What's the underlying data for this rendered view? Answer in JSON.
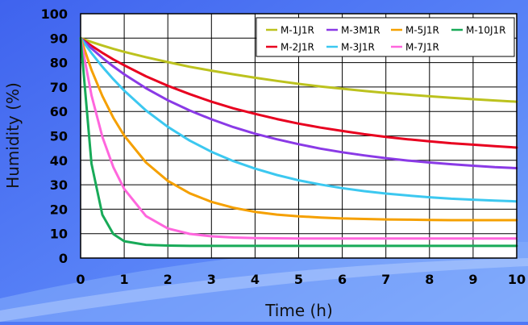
{
  "chart_data": {
    "type": "line",
    "title": "",
    "xlabel": "Time (h)",
    "ylabel": "Humidity (%)",
    "xlim": [
      0,
      10
    ],
    "ylim": [
      0,
      100
    ],
    "x_ticks": [
      "0",
      "1",
      "2",
      "3",
      "4",
      "5",
      "6",
      "7",
      "8",
      "9",
      "10"
    ],
    "y_ticks": [
      "0",
      "10",
      "20",
      "30",
      "40",
      "50",
      "60",
      "70",
      "80",
      "90",
      "100"
    ],
    "grid": true,
    "legend_position": "top-right",
    "x": [
      0,
      0.25,
      0.5,
      0.75,
      1,
      1.5,
      2,
      2.5,
      3,
      3.5,
      4,
      4.5,
      5,
      5.5,
      6,
      6.5,
      7,
      7.5,
      8,
      8.5,
      9,
      9.5,
      10
    ],
    "series": [
      {
        "name": "M-1J1R",
        "color": "#bcc21e",
        "values": [
          90,
          88.4,
          87.0,
          85.6,
          84.4,
          82.2,
          80.2,
          78.3,
          76.7,
          75.2,
          73.8,
          72.5,
          71.3,
          70.2,
          69.3,
          68.4,
          67.6,
          66.9,
          66.2,
          65.6,
          65.0,
          64.5,
          64.0
        ]
      },
      {
        "name": "M-2J1R",
        "color": "#e8001f",
        "values": [
          90,
          86.9,
          84.0,
          81.3,
          78.9,
          74.4,
          70.5,
          67.1,
          64.0,
          61.3,
          59.0,
          56.9,
          55.0,
          53.4,
          52.0,
          50.7,
          49.6,
          48.6,
          47.8,
          47.0,
          46.4,
          45.8,
          45.2
        ]
      },
      {
        "name": "M-3M1R",
        "color": "#8a3ae6",
        "values": [
          90,
          85.8,
          81.9,
          78.4,
          75.2,
          69.5,
          64.6,
          60.4,
          56.8,
          53.6,
          50.9,
          48.6,
          46.6,
          44.8,
          43.3,
          42.0,
          40.9,
          39.9,
          39.1,
          38.4,
          37.8,
          37.2,
          36.8
        ]
      },
      {
        "name": "M-3J1R",
        "color": "#3cc8f0",
        "values": [
          90,
          83.9,
          78.3,
          73.2,
          68.5,
          60.4,
          53.7,
          48.1,
          43.5,
          39.7,
          36.6,
          34.0,
          31.8,
          30.1,
          28.6,
          27.4,
          26.4,
          25.6,
          24.9,
          24.3,
          23.9,
          23.5,
          23.2
        ]
      },
      {
        "name": "M-5J1R",
        "color": "#f5a000",
        "values": [
          90,
          77.0,
          66.3,
          57.4,
          50.1,
          39.1,
          31.6,
          26.5,
          23.0,
          20.6,
          18.9,
          17.8,
          17.1,
          16.6,
          16.2,
          16.0,
          15.8,
          15.7,
          15.6,
          15.5,
          15.5,
          15.5,
          15.5
        ]
      },
      {
        "name": "M-7J1R",
        "color": "#ff66dd",
        "values": [
          90,
          66.6,
          49.6,
          37.2,
          28.3,
          17.2,
          12.1,
          9.9,
          8.9,
          8.4,
          8.2,
          8.1,
          8.0,
          8.0,
          8.0,
          8.0,
          8.0,
          8.0,
          8.0,
          8.0,
          8.0,
          8.0,
          8.0
        ]
      },
      {
        "name": "M-10J1R",
        "color": "#18aa58",
        "values": [
          90,
          38.6,
          17.7,
          9.8,
          6.9,
          5.4,
          5.1,
          5.0,
          5.0,
          5.0,
          5.0,
          5.0,
          5.0,
          5.0,
          5.0,
          5.0,
          5.0,
          5.0,
          5.0,
          5.0,
          5.0,
          5.0,
          5.0
        ]
      }
    ],
    "legend_order": [
      "M-1J1R",
      "M-3M1R",
      "M-5J1R",
      "M-10J1R",
      "M-2J1R",
      "M-3J1R",
      "M-7J1R"
    ]
  }
}
